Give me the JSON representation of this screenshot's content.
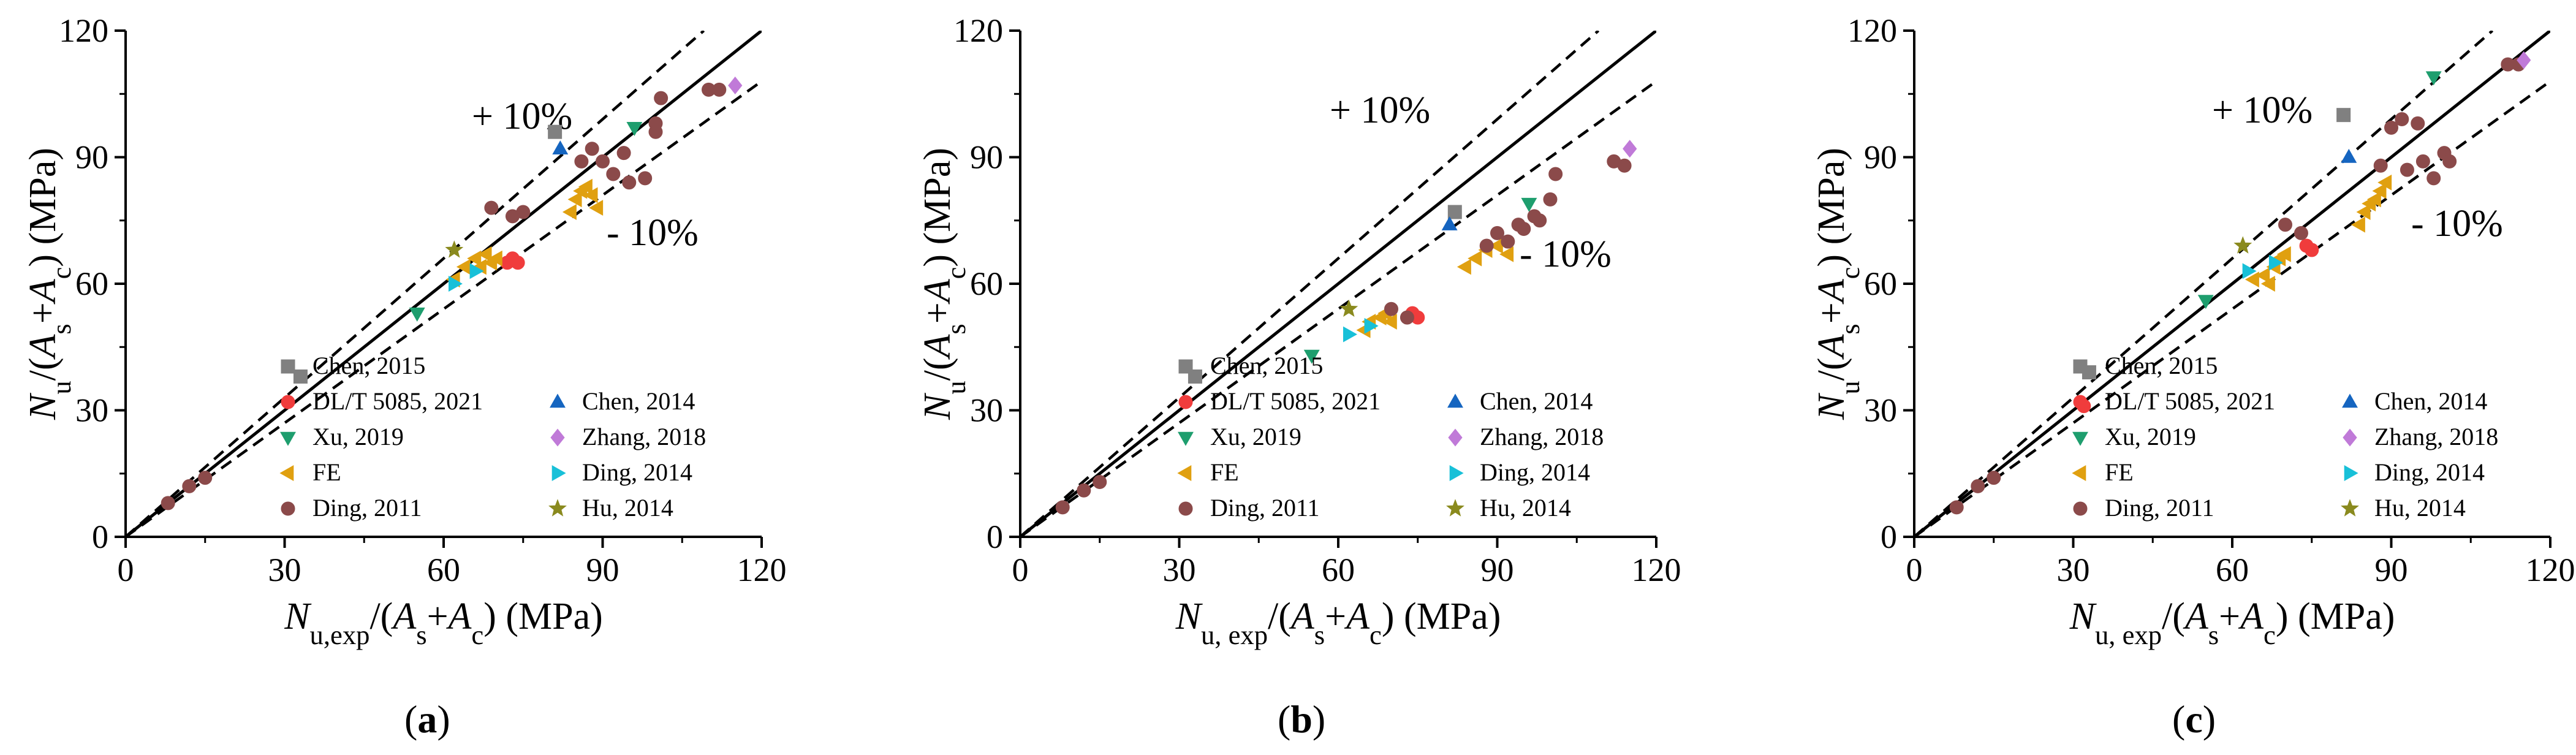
{
  "figure": {
    "panel_labels": [
      "(a)",
      "(b)",
      "(c)"
    ]
  },
  "legend": [
    {
      "name": "Chen, 2015",
      "marker": "square",
      "color": "#808080"
    },
    {
      "name": "DL/T 5085, 2021",
      "marker": "circle",
      "color": "#f03c3c"
    },
    {
      "name": "Xu, 2019",
      "marker": "triangle-down",
      "color": "#1e9e6e"
    },
    {
      "name": "FE",
      "marker": "triangle-left",
      "color": "#e0a010"
    },
    {
      "name": "Ding, 2011",
      "marker": "circle",
      "color": "#8b4a4a"
    },
    {
      "name": "Chen, 2014",
      "marker": "triangle-up",
      "color": "#1565c0"
    },
    {
      "name": "Zhang, 2018",
      "marker": "diamond",
      "color": "#c07ad8"
    },
    {
      "name": "Ding, 2014",
      "marker": "triangle-right",
      "color": "#18c0d8"
    },
    {
      "name": "Hu, 2014",
      "marker": "star",
      "color": "#8a8a1e"
    }
  ],
  "chart_data": [
    {
      "type": "scatter",
      "panel": "(a)",
      "xlabel": "N_u,exp/(A_s+A_c) (MPa)",
      "ylabel": "N_u/(A_s+A_c) (MPa)",
      "xlim": [
        0,
        120
      ],
      "ylim": [
        0,
        120
      ],
      "xticks": [
        "0",
        "30",
        "60",
        "90",
        "120"
      ],
      "yticks": [
        "0",
        "30",
        "60",
        "90",
        "120"
      ],
      "annotations": [
        "+ 10%",
        "- 10%"
      ],
      "reference_lines": [
        {
          "slope": 1.0,
          "style": "solid"
        },
        {
          "slope": 1.1,
          "style": "dashed"
        },
        {
          "slope": 0.9,
          "style": "dashed"
        }
      ],
      "series": [
        {
          "name": "Chen, 2015",
          "x": [
            33,
            81
          ],
          "y": [
            38,
            96
          ]
        },
        {
          "name": "DL/T 5085, 2021",
          "x": [
            72,
            73,
            74
          ],
          "y": [
            65,
            66,
            65
          ]
        },
        {
          "name": "Xu, 2019",
          "x": [
            55,
            96
          ],
          "y": [
            53,
            97
          ]
        },
        {
          "name": "FE",
          "x": [
            62,
            64,
            66,
            67,
            68,
            69,
            70,
            84,
            85,
            86,
            87,
            88,
            89
          ],
          "y": [
            61,
            64,
            66,
            64,
            67,
            65,
            66,
            77,
            80,
            82,
            83,
            81,
            78
          ]
        },
        {
          "name": "Ding, 2011",
          "x": [
            8,
            12,
            15,
            69,
            73,
            75,
            86,
            88,
            90,
            92,
            94,
            95,
            98,
            100,
            100,
            101,
            110,
            112
          ],
          "y": [
            8,
            12,
            14,
            78,
            76,
            77,
            89,
            92,
            89,
            86,
            91,
            84,
            85,
            96,
            98,
            104,
            106,
            106
          ]
        },
        {
          "name": "Chen, 2014",
          "x": [
            82
          ],
          "y": [
            92
          ]
        },
        {
          "name": "Zhang, 2018",
          "x": [
            115
          ],
          "y": [
            107
          ]
        },
        {
          "name": "Ding, 2014",
          "x": [
            62,
            66
          ],
          "y": [
            60,
            63
          ]
        },
        {
          "name": "Hu, 2014",
          "x": [
            62
          ],
          "y": [
            68
          ]
        }
      ]
    },
    {
      "type": "scatter",
      "panel": "(b)",
      "xlabel": "N_u, exp/(A_s+A_c) (MPa)",
      "ylabel": "N_u/(A_s+A_c) (MPa)",
      "xlim": [
        0,
        120
      ],
      "ylim": [
        0,
        120
      ],
      "xticks": [
        "0",
        "30",
        "60",
        "90",
        "120"
      ],
      "yticks": [
        "0",
        "30",
        "60",
        "90",
        "120"
      ],
      "annotations": [
        "+ 10%",
        "- 10%"
      ],
      "reference_lines": [
        {
          "slope": 1.0,
          "style": "solid"
        },
        {
          "slope": 1.1,
          "style": "dashed"
        },
        {
          "slope": 0.9,
          "style": "dashed"
        }
      ],
      "series": [
        {
          "name": "Chen, 2015",
          "x": [
            33,
            82
          ],
          "y": [
            38,
            77
          ]
        },
        {
          "name": "DL/T 5085, 2021",
          "x": [
            74,
            75
          ],
          "y": [
            53,
            52
          ]
        },
        {
          "name": "Xu, 2019",
          "x": [
            55,
            96
          ],
          "y": [
            43,
            79
          ]
        },
        {
          "name": "FE",
          "x": [
            65,
            66,
            68,
            69,
            70,
            84,
            86,
            88,
            90,
            92
          ],
          "y": [
            49,
            51,
            52,
            53,
            51,
            64,
            66,
            68,
            69,
            67
          ]
        },
        {
          "name": "Ding, 2011",
          "x": [
            8,
            12,
            15,
            70,
            73,
            88,
            90,
            92,
            94,
            95,
            97,
            98,
            100,
            101,
            112,
            114
          ],
          "y": [
            7,
            11,
            13,
            54,
            52,
            69,
            72,
            70,
            74,
            73,
            76,
            75,
            80,
            86,
            89,
            88
          ]
        },
        {
          "name": "Chen, 2014",
          "x": [
            81
          ],
          "y": [
            74
          ]
        },
        {
          "name": "Zhang, 2018",
          "x": [
            115
          ],
          "y": [
            92
          ]
        },
        {
          "name": "Ding, 2014",
          "x": [
            62,
            66
          ],
          "y": [
            48,
            50
          ]
        },
        {
          "name": "Hu, 2014",
          "x": [
            62
          ],
          "y": [
            54
          ]
        }
      ]
    },
    {
      "type": "scatter",
      "panel": "(c)",
      "xlabel": "N_u, exp/(A_s+A_c) (MPa)",
      "ylabel": "N_u/(A_s+A_c) (MPa)",
      "xlim": [
        0,
        120
      ],
      "ylim": [
        0,
        120
      ],
      "xticks": [
        "0",
        "30",
        "60",
        "90",
        "120"
      ],
      "yticks": [
        "0",
        "30",
        "60",
        "90",
        "120"
      ],
      "annotations": [
        "+ 10%",
        "- 10%"
      ],
      "reference_lines": [
        {
          "slope": 1.0,
          "style": "solid"
        },
        {
          "slope": 1.1,
          "style": "dashed"
        },
        {
          "slope": 0.9,
          "style": "dashed"
        }
      ],
      "series": [
        {
          "name": "Chen, 2015",
          "x": [
            33,
            81
          ],
          "y": [
            39,
            100
          ]
        },
        {
          "name": "DL/T 5085, 2021",
          "x": [
            32,
            74,
            75
          ],
          "y": [
            31,
            69,
            68
          ]
        },
        {
          "name": "Xu, 2019",
          "x": [
            55,
            98
          ],
          "y": [
            56,
            109
          ]
        },
        {
          "name": "FE",
          "x": [
            64,
            66,
            67,
            68,
            69,
            70,
            84,
            85,
            86,
            87,
            88,
            89
          ],
          "y": [
            61,
            62,
            60,
            64,
            66,
            67,
            74,
            77,
            79,
            80,
            82,
            84
          ]
        },
        {
          "name": "Ding, 2011",
          "x": [
            8,
            12,
            15,
            70,
            73,
            88,
            90,
            92,
            93,
            95,
            96,
            98,
            100,
            101,
            112,
            114
          ],
          "y": [
            7,
            12,
            14,
            74,
            72,
            88,
            97,
            99,
            87,
            98,
            89,
            85,
            91,
            89,
            112,
            112
          ]
        },
        {
          "name": "Chen, 2014",
          "x": [
            82
          ],
          "y": [
            90
          ]
        },
        {
          "name": "Zhang, 2018",
          "x": [
            115
          ],
          "y": [
            113
          ]
        },
        {
          "name": "Ding, 2014",
          "x": [
            63,
            68
          ],
          "y": [
            63,
            65
          ]
        },
        {
          "name": "Hu, 2014",
          "x": [
            62
          ],
          "y": [
            69
          ]
        }
      ]
    }
  ]
}
